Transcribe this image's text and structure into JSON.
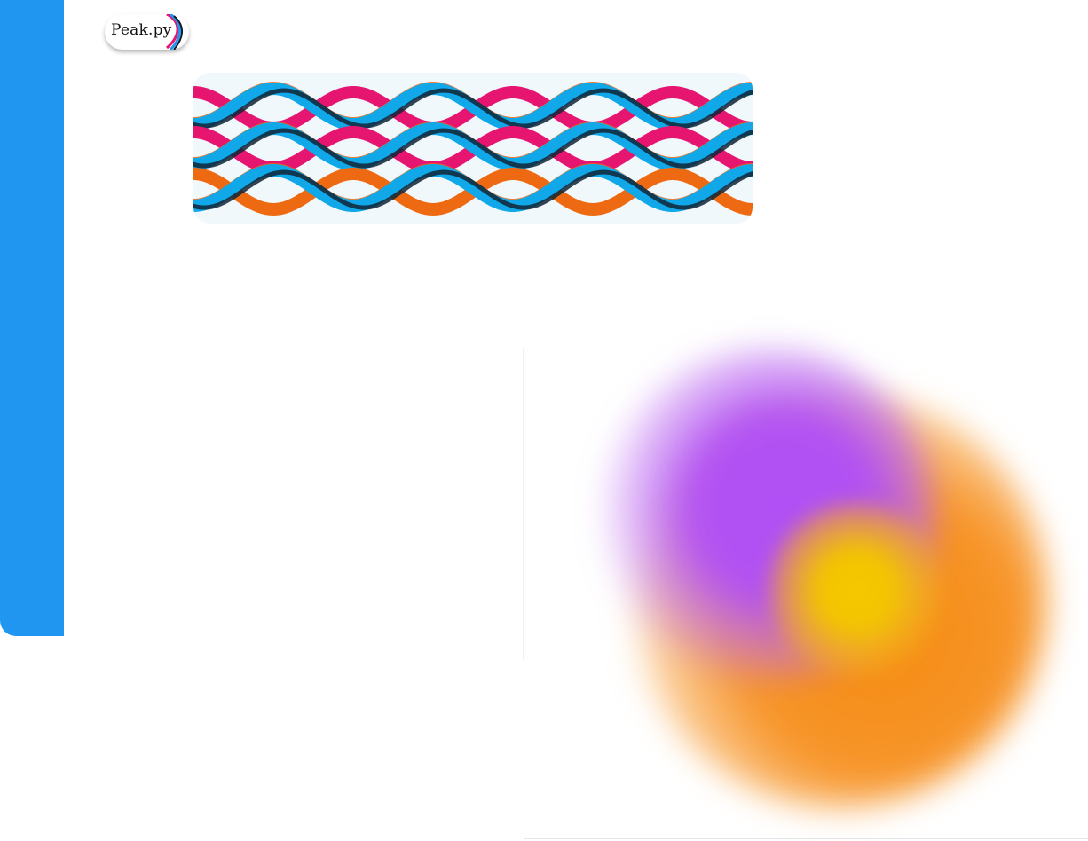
{
  "logo": {
    "text": "Peak.py",
    "icon": "ribbon-logo-icon"
  },
  "sidebar": {
    "color": "#2196f0"
  },
  "wave_banner": {
    "background": "#f1f8fb",
    "colors": {
      "blue": "#10a8e8",
      "magenta": "#e6156f",
      "orange": "#ee6a12",
      "dark": "#102535"
    }
  },
  "blob": {
    "colors": {
      "purple": "#b050f5",
      "orange": "#f58a10",
      "yellow": "#f4c800"
    }
  }
}
